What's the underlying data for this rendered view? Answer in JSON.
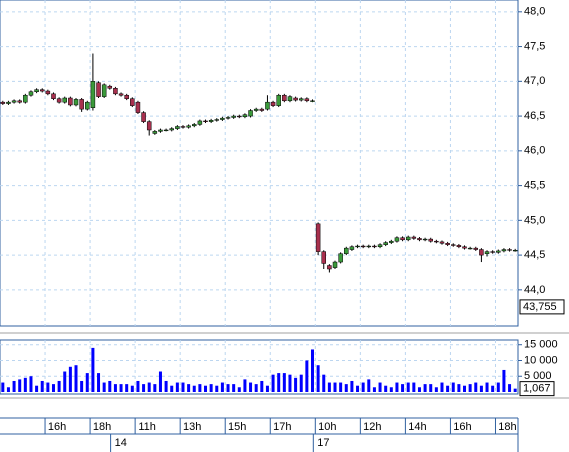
{
  "chart_data": {
    "type": "candlestick",
    "categories": [
      null,
      null,
      null,
      null,
      null,
      null,
      null,
      null,
      "16h",
      null,
      null,
      null,
      null,
      null,
      null,
      null,
      "18h",
      null,
      null,
      null,
      null,
      null,
      null,
      null,
      "11h",
      null,
      null,
      null,
      null,
      null,
      null,
      null,
      "13h",
      null,
      null,
      null,
      null,
      null,
      null,
      null,
      "15h",
      null,
      null,
      null,
      null,
      null,
      null,
      null,
      "17h",
      null,
      null,
      null,
      null,
      null,
      null,
      null,
      "10h",
      null,
      null,
      null,
      null,
      null,
      null,
      null,
      "12h",
      null,
      null,
      null,
      null,
      null,
      null,
      null,
      "14h",
      null,
      null,
      null,
      null,
      null,
      null,
      null,
      "16h",
      null,
      null,
      null,
      null,
      null,
      null,
      null,
      "18h",
      null,
      null,
      null
    ],
    "days": [
      null,
      null,
      null,
      null,
      null,
      null,
      null,
      null,
      null,
      null,
      null,
      null,
      null,
      null,
      null,
      null,
      null,
      null,
      null,
      null,
      "14",
      null,
      null,
      null,
      null,
      null,
      null,
      null,
      null,
      null,
      null,
      null,
      null,
      null,
      null,
      null,
      null,
      null,
      null,
      null,
      null,
      null,
      null,
      null,
      null,
      null,
      null,
      null,
      null,
      null,
      null,
      null,
      null,
      null,
      null,
      null,
      "17",
      null,
      null,
      null,
      null,
      null,
      null,
      null,
      null,
      null,
      null,
      null,
      null,
      null,
      null,
      null,
      null,
      null,
      null,
      null,
      null,
      null,
      null,
      null,
      null,
      null,
      null,
      null,
      null,
      null,
      null,
      null,
      null,
      null,
      null,
      null
    ],
    "open": [
      46.7,
      46.68,
      46.7,
      46.72,
      46.7,
      46.8,
      46.85,
      46.88,
      46.86,
      46.82,
      46.75,
      46.7,
      46.76,
      46.66,
      46.74,
      46.6,
      46.62,
      46.98,
      46.78,
      46.93,
      46.9,
      46.82,
      46.8,
      46.75,
      46.7,
      46.55,
      46.42,
      46.25,
      46.28,
      46.3,
      46.3,
      46.32,
      46.35,
      46.34,
      46.36,
      46.38,
      46.43,
      46.42,
      46.44,
      46.45,
      46.47,
      46.48,
      46.5,
      46.49,
      46.5,
      46.58,
      46.6,
      46.6,
      46.7,
      46.65,
      46.8,
      46.72,
      46.76,
      46.73,
      46.75,
      46.72,
      44.95,
      44.55,
      44.35,
      44.32,
      44.4,
      44.52,
      44.58,
      44.62,
      44.63,
      44.62,
      44.63,
      44.62,
      44.65,
      44.68,
      44.7,
      44.75,
      44.72,
      44.76,
      44.74,
      44.72,
      44.73,
      44.7,
      44.69,
      44.67,
      44.65,
      44.64,
      44.62,
      44.6,
      44.6,
      44.58,
      44.52,
      44.55,
      44.54,
      44.56,
      44.58,
      44.57
    ],
    "high": [
      46.72,
      46.72,
      46.74,
      46.74,
      46.82,
      46.87,
      46.9,
      46.9,
      46.88,
      46.84,
      46.77,
      46.78,
      46.78,
      46.76,
      46.76,
      46.72,
      47.4,
      47.0,
      46.97,
      46.95,
      46.92,
      46.84,
      46.82,
      46.77,
      46.72,
      46.57,
      46.44,
      46.3,
      46.32,
      46.32,
      46.34,
      46.37,
      46.37,
      46.38,
      46.4,
      46.45,
      46.45,
      46.46,
      46.47,
      46.49,
      46.5,
      46.52,
      46.52,
      46.54,
      46.6,
      46.62,
      46.62,
      46.8,
      46.72,
      46.82,
      46.82,
      46.8,
      46.78,
      46.77,
      46.77,
      46.74,
      44.97,
      44.57,
      44.37,
      44.42,
      44.54,
      44.62,
      44.64,
      44.65,
      44.65,
      44.65,
      44.65,
      44.67,
      44.7,
      44.72,
      44.77,
      44.77,
      44.78,
      44.78,
      44.76,
      44.75,
      44.75,
      44.72,
      44.71,
      44.69,
      44.67,
      44.66,
      44.64,
      44.62,
      44.62,
      44.6,
      44.57,
      44.57,
      44.58,
      44.6,
      44.6,
      44.59
    ],
    "low": [
      46.66,
      46.66,
      46.68,
      46.68,
      46.68,
      46.78,
      46.83,
      46.84,
      46.8,
      46.73,
      46.68,
      46.68,
      46.64,
      46.64,
      46.56,
      46.58,
      46.58,
      46.76,
      46.76,
      46.88,
      46.8,
      46.78,
      46.73,
      46.63,
      46.53,
      46.4,
      46.22,
      46.23,
      46.26,
      46.28,
      46.28,
      46.3,
      46.32,
      46.32,
      46.34,
      46.36,
      46.4,
      46.4,
      46.42,
      46.43,
      46.45,
      46.46,
      46.47,
      46.47,
      46.48,
      46.56,
      46.56,
      46.58,
      46.63,
      46.63,
      46.7,
      46.7,
      46.71,
      46.71,
      46.7,
      46.7,
      44.5,
      44.3,
      44.25,
      44.3,
      44.38,
      44.5,
      44.56,
      44.6,
      44.6,
      44.6,
      44.6,
      44.6,
      44.63,
      44.66,
      44.68,
      44.7,
      44.7,
      44.72,
      44.7,
      44.7,
      44.68,
      44.67,
      44.65,
      44.63,
      44.62,
      44.6,
      44.58,
      44.58,
      44.56,
      44.4,
      44.48,
      44.52,
      44.52,
      44.54,
      44.55,
      44.55
    ],
    "close": [
      46.68,
      46.7,
      46.72,
      46.7,
      46.8,
      46.85,
      46.88,
      46.86,
      46.82,
      46.75,
      46.7,
      46.76,
      46.66,
      46.74,
      46.6,
      46.7,
      47.0,
      46.78,
      46.95,
      46.9,
      46.82,
      46.8,
      46.75,
      46.65,
      46.55,
      46.42,
      46.3,
      46.28,
      46.3,
      46.3,
      46.32,
      46.35,
      46.34,
      46.36,
      46.38,
      46.43,
      46.42,
      46.44,
      46.45,
      46.47,
      46.48,
      46.5,
      46.49,
      46.52,
      46.58,
      46.6,
      46.58,
      46.7,
      46.65,
      46.8,
      46.72,
      46.78,
      46.73,
      46.75,
      46.72,
      46.72,
      44.55,
      44.38,
      44.3,
      44.4,
      44.52,
      44.6,
      44.62,
      44.63,
      44.62,
      44.63,
      44.62,
      44.65,
      44.68,
      44.7,
      44.75,
      44.72,
      44.76,
      44.74,
      44.72,
      44.73,
      44.7,
      44.69,
      44.67,
      44.65,
      44.64,
      44.62,
      44.6,
      44.6,
      44.58,
      44.5,
      44.55,
      44.54,
      44.56,
      44.58,
      44.57,
      44.57
    ],
    "volume": [
      3000,
      1500,
      3500,
      4000,
      4500,
      5000,
      2000,
      3500,
      3000,
      2500,
      3500,
      6500,
      8000,
      8500,
      3500,
      6000,
      14000,
      6000,
      3000,
      3500,
      2500,
      2500,
      2500,
      2000,
      3500,
      2500,
      3000,
      2500,
      6500,
      3500,
      2000,
      3000,
      3000,
      2500,
      2000,
      2500,
      2000,
      2500,
      2000,
      3000,
      2500,
      2500,
      1500,
      4000,
      3000,
      2500,
      3500,
      2000,
      5500,
      6000,
      6000,
      5500,
      4500,
      5500,
      10000,
      13500,
      8500,
      5500,
      3000,
      3000,
      3000,
      2500,
      3500,
      2000,
      3000,
      4000,
      1500,
      3000,
      2000,
      1500,
      3000,
      2500,
      3000,
      3000,
      1500,
      2500,
      2500,
      1500,
      3000,
      2000,
      3000,
      2500,
      2000,
      2500,
      3000,
      2000,
      3000,
      2000,
      3000,
      7000,
      2500,
      1067
    ],
    "volume_value_label": "1,067",
    "price_marker": {
      "value": 43.755,
      "label": "43,755"
    },
    "ylim": [
      43.48,
      48.17
    ],
    "yticks": [
      {
        "value": 44.0,
        "label": "44,0"
      },
      {
        "value": 44.5,
        "label": "44,5"
      },
      {
        "value": 45.0,
        "label": "45,0"
      },
      {
        "value": 45.5,
        "label": "45,5"
      },
      {
        "value": 46.0,
        "label": "46,0"
      },
      {
        "value": 46.5,
        "label": "46,5"
      },
      {
        "value": 47.0,
        "label": "47,0"
      },
      {
        "value": 47.5,
        "label": "47,5"
      },
      {
        "value": 48.0,
        "label": "48,0"
      }
    ],
    "volume_ylim": [
      0,
      16500
    ],
    "volume_yticks": [
      {
        "value": 5000,
        "label": "5 000"
      },
      {
        "value": 10000,
        "label": "10 000"
      },
      {
        "value": 15000,
        "label": "15 000"
      }
    ],
    "up_color": "#3a9a3a",
    "down_color": "#a8304e",
    "volume_color": "#0000ff",
    "grid": true
  }
}
